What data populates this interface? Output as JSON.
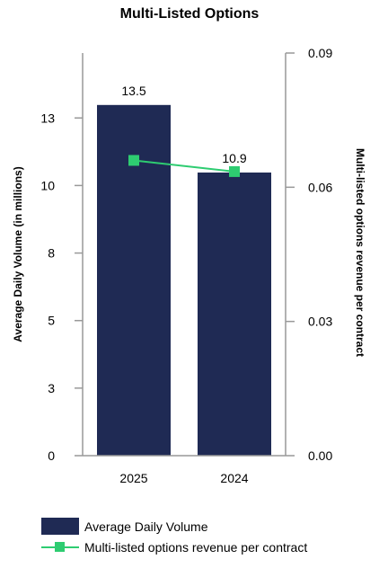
{
  "chart_data": {
    "type": "bar",
    "title": "Multi-Listed Options",
    "categories": [
      "2025",
      "2024"
    ],
    "series": [
      {
        "name": "Average Daily Volume",
        "type": "bar",
        "axis": "left",
        "values": [
          13.5,
          10.9
        ],
        "data_labels": [
          "13.5",
          "10.9"
        ],
        "color": "#1f2a54"
      },
      {
        "name": "Multi-listed options revenue per contract",
        "type": "line",
        "axis": "right",
        "values": [
          0.066,
          0.0635
        ],
        "color": "#2ecc71"
      }
    ],
    "ylabel": "Average Daily Volume (in millions)",
    "ylim": [
      0,
      15.5
    ],
    "yticks": [
      0,
      2.6,
      5.2,
      7.8,
      10.4,
      13
    ],
    "ytick_labels": [
      "0",
      "3",
      "5",
      "8",
      "10",
      "13"
    ],
    "y2label": "Multi-listed options revenue per contract",
    "y2lim": [
      0,
      0.09
    ],
    "y2ticks": [
      0,
      0.03,
      0.06,
      0.09
    ],
    "y2tick_labels": [
      "0.00",
      "0.03",
      "0.06",
      "0.09"
    ],
    "grid": false,
    "legend_position": "bottom-left"
  }
}
